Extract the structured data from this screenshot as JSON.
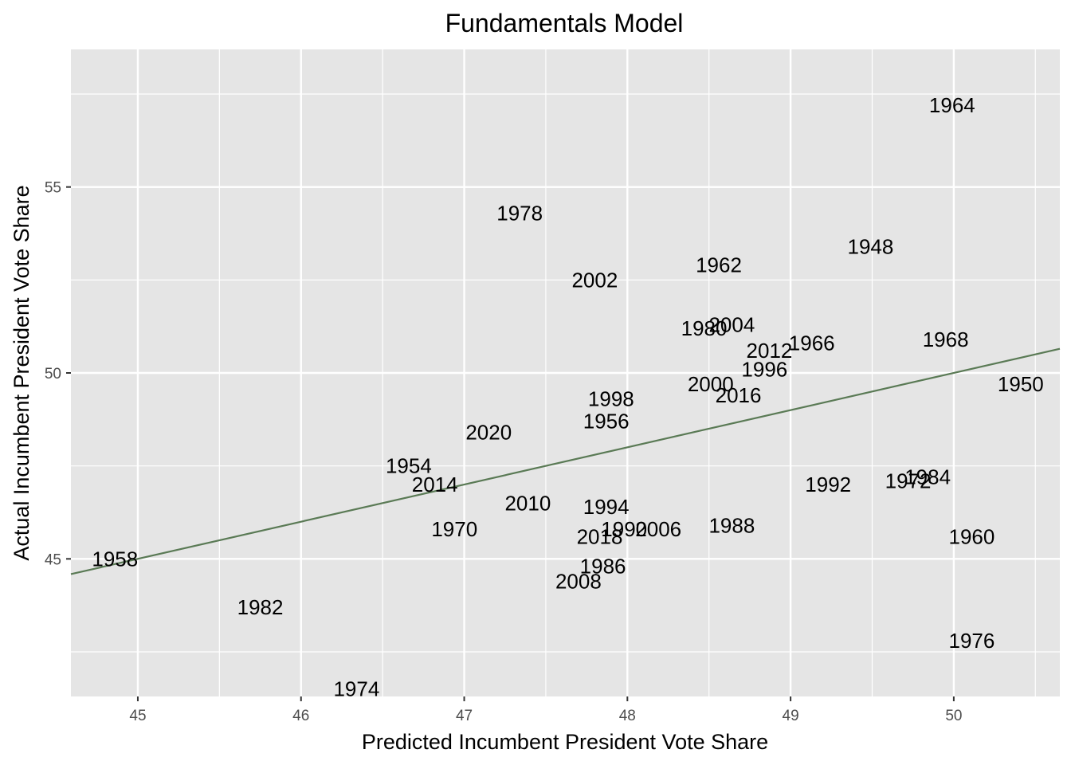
{
  "chart_data": {
    "type": "scatter",
    "title": "Fundamentals Model",
    "xlabel": "Predicted Incumbent President Vote Share",
    "ylabel": "Actual Incumbent President Vote Share",
    "xlim": [
      44.59,
      50.65
    ],
    "ylim": [
      41.3,
      58.7
    ],
    "xticks": [
      45,
      46,
      47,
      48,
      49,
      50
    ],
    "yticks": [
      45,
      50,
      55
    ],
    "grid": true,
    "panel_background": "#e5e5e5",
    "grid_color": "#ffffff",
    "label_color": "#000000",
    "reference_line": {
      "slope": 1,
      "intercept": 0,
      "color": "#5a7a55"
    },
    "points": [
      {
        "label": "1948",
        "x": 49.49,
        "y": 53.4
      },
      {
        "label": "1950",
        "x": 50.41,
        "y": 49.7
      },
      {
        "label": "1954",
        "x": 46.66,
        "y": 47.5
      },
      {
        "label": "1956",
        "x": 47.87,
        "y": 48.7
      },
      {
        "label": "1958",
        "x": 44.86,
        "y": 45.0
      },
      {
        "label": "1960",
        "x": 50.11,
        "y": 45.6
      },
      {
        "label": "1962",
        "x": 48.56,
        "y": 52.9
      },
      {
        "label": "1964",
        "x": 49.99,
        "y": 57.2
      },
      {
        "label": "1966",
        "x": 49.13,
        "y": 50.8
      },
      {
        "label": "1968",
        "x": 49.95,
        "y": 50.9
      },
      {
        "label": "1970",
        "x": 46.94,
        "y": 45.8
      },
      {
        "label": "1972",
        "x": 49.72,
        "y": 47.1
      },
      {
        "label": "1974",
        "x": 46.34,
        "y": 41.5
      },
      {
        "label": "1976",
        "x": 50.11,
        "y": 42.8
      },
      {
        "label": "1978",
        "x": 47.34,
        "y": 54.3
      },
      {
        "label": "1980",
        "x": 48.47,
        "y": 51.2
      },
      {
        "label": "1982",
        "x": 45.75,
        "y": 43.7
      },
      {
        "label": "1984",
        "x": 49.84,
        "y": 47.2
      },
      {
        "label": "1986",
        "x": 47.85,
        "y": 44.8
      },
      {
        "label": "1988",
        "x": 48.64,
        "y": 45.9
      },
      {
        "label": "1990",
        "x": 47.98,
        "y": 45.8
      },
      {
        "label": "1992",
        "x": 49.23,
        "y": 47.0
      },
      {
        "label": "1994",
        "x": 47.87,
        "y": 46.4
      },
      {
        "label": "1996",
        "x": 48.84,
        "y": 50.1
      },
      {
        "label": "1998",
        "x": 47.9,
        "y": 49.3
      },
      {
        "label": "2000",
        "x": 48.51,
        "y": 49.7
      },
      {
        "label": "2002",
        "x": 47.8,
        "y": 52.5
      },
      {
        "label": "2004",
        "x": 48.64,
        "y": 51.3
      },
      {
        "label": "2006",
        "x": 48.19,
        "y": 45.8
      },
      {
        "label": "2008",
        "x": 47.7,
        "y": 44.4
      },
      {
        "label": "2010",
        "x": 47.39,
        "y": 46.5
      },
      {
        "label": "2012",
        "x": 48.87,
        "y": 50.6
      },
      {
        "label": "2014",
        "x": 46.82,
        "y": 47.0
      },
      {
        "label": "2016",
        "x": 48.68,
        "y": 49.4
      },
      {
        "label": "2018",
        "x": 47.83,
        "y": 45.6
      },
      {
        "label": "2020",
        "x": 47.15,
        "y": 48.4
      }
    ]
  }
}
